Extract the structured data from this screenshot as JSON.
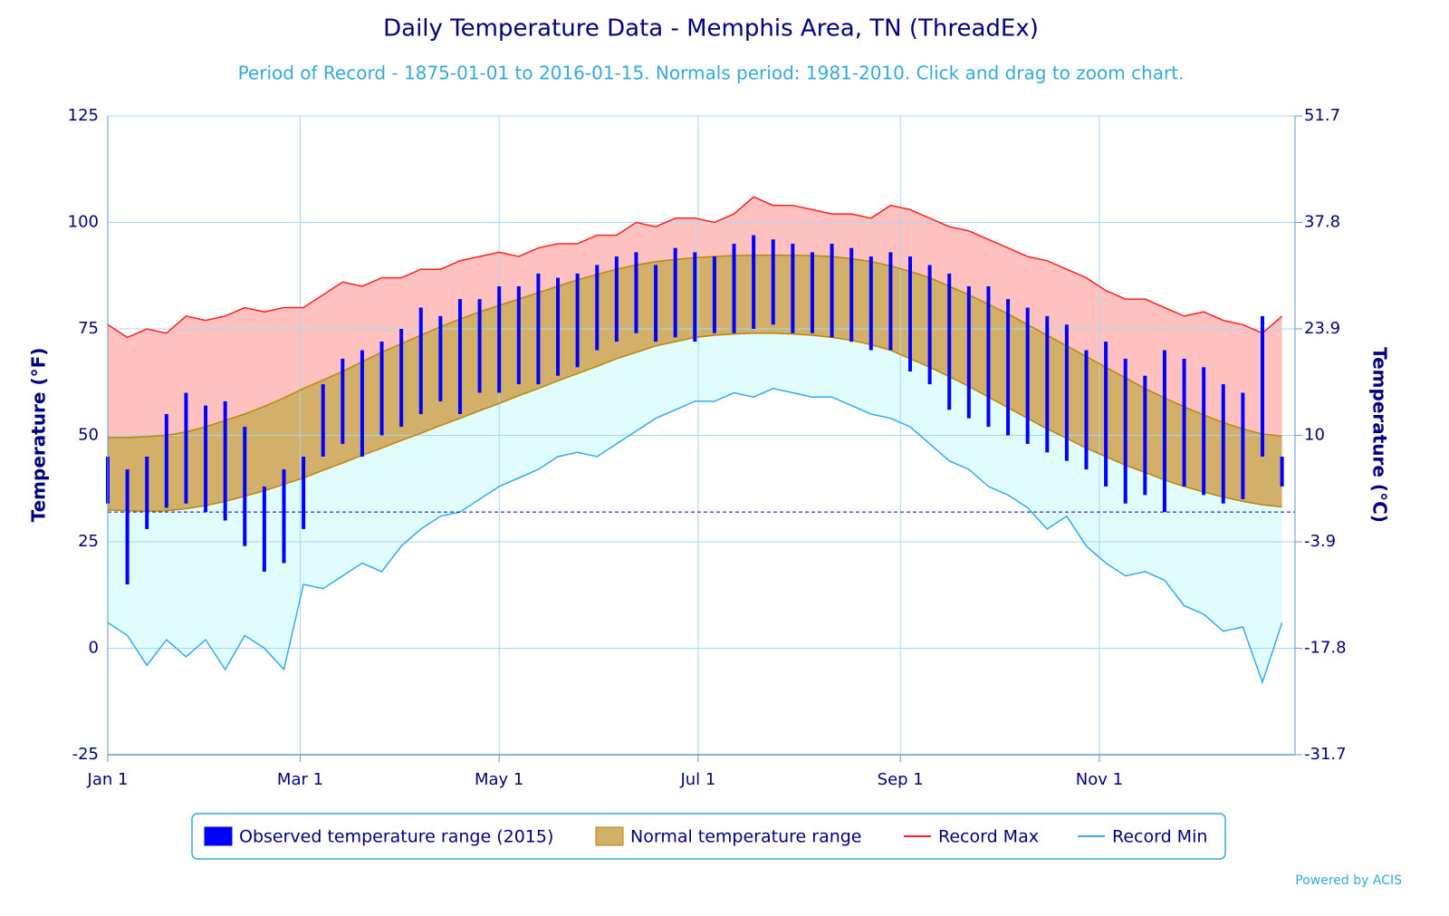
{
  "chart_data": {
    "type": "climate-range",
    "title": "Daily Temperature Data - Memphis Area, TN (ThreadEx)",
    "subtitle": "Period of Record - 1875-01-01 to 2016-01-15. Normals period: 1981-2010. Click and drag to zoom chart.",
    "y_label": "Temperature (°F)",
    "y2_label": "Temperature (°C)",
    "credit": "Powered by ACIS",
    "xlim": [
      0,
      364
    ],
    "xticks": [
      {
        "value": 0,
        "label": "Jan 1"
      },
      {
        "value": 59,
        "label": "Mar 1"
      },
      {
        "value": 120,
        "label": "May 1"
      },
      {
        "value": 181,
        "label": "Jul 1"
      },
      {
        "value": 243,
        "label": "Sep 1"
      },
      {
        "value": 304,
        "label": "Nov 1"
      }
    ],
    "ylim": [
      -25,
      125
    ],
    "yticks": [
      -25,
      0,
      25,
      50,
      75,
      100,
      125
    ],
    "y2lim": [
      -31.7,
      51.7
    ],
    "y2ticks": [
      -31.7,
      -17.8,
      -3.9,
      10,
      23.9,
      37.8,
      51.7
    ],
    "freeze_line": 32,
    "x": [
      0,
      6,
      12,
      18,
      24,
      30,
      36,
      42,
      48,
      54,
      60,
      66,
      72,
      78,
      84,
      90,
      96,
      102,
      108,
      114,
      120,
      126,
      132,
      138,
      144,
      150,
      156,
      162,
      168,
      174,
      180,
      186,
      192,
      198,
      204,
      210,
      216,
      222,
      228,
      234,
      240,
      246,
      252,
      258,
      264,
      270,
      276,
      282,
      288,
      294,
      300,
      306,
      312,
      318,
      324,
      330,
      336,
      342,
      348,
      354,
      360
    ],
    "series": [
      {
        "name": "Observed temperature range (2015)",
        "color": "#0000ff",
        "high": [
          45,
          42,
          45,
          55,
          60,
          57,
          58,
          52,
          38,
          42,
          45,
          62,
          68,
          70,
          72,
          75,
          80,
          78,
          82,
          82,
          85,
          85,
          88,
          87,
          88,
          90,
          92,
          93,
          90,
          94,
          93,
          92,
          95,
          97,
          96,
          95,
          93,
          95,
          94,
          92,
          93,
          92,
          90,
          88,
          85,
          85,
          82,
          80,
          78,
          76,
          70,
          72,
          68,
          64,
          70,
          68,
          66,
          62,
          60,
          78,
          45
        ],
        "low": [
          34,
          15,
          28,
          33,
          34,
          32,
          30,
          24,
          18,
          20,
          28,
          45,
          48,
          45,
          50,
          52,
          55,
          58,
          55,
          60,
          60,
          62,
          62,
          64,
          66,
          70,
          72,
          74,
          72,
          73,
          72,
          74,
          74,
          75,
          76,
          74,
          74,
          73,
          72,
          70,
          70,
          65,
          62,
          56,
          54,
          52,
          50,
          48,
          46,
          44,
          42,
          38,
          34,
          36,
          32,
          38,
          36,
          34,
          35,
          45,
          38
        ]
      },
      {
        "name": "Normal temperature range",
        "color": "#b8860b",
        "fill": "#d2b06a",
        "high": [
          49.5,
          49.5,
          49.7,
          50,
          50.8,
          52,
          53.5,
          55,
          56.8,
          58.8,
          61,
          63,
          65,
          67.3,
          69.5,
          71.5,
          73.5,
          75.5,
          77.3,
          79,
          80.5,
          82,
          83.5,
          85,
          86.5,
          87.8,
          89,
          90,
          90.8,
          91.3,
          91.7,
          92,
          92.2,
          92.3,
          92.3,
          92.3,
          92.2,
          92,
          91.5,
          90.8,
          89.8,
          88.5,
          87,
          85,
          83,
          80.8,
          78.5,
          76,
          73.5,
          71,
          68.5,
          66,
          63.5,
          61,
          58.8,
          56.7,
          54.8,
          53,
          51.5,
          50.3,
          49.8
        ],
        "low": [
          32.5,
          32.3,
          32.2,
          32.3,
          32.8,
          33.5,
          34.5,
          35.7,
          37,
          38.5,
          40,
          41.8,
          43.5,
          45.3,
          47,
          48.8,
          50.5,
          52.3,
          54,
          55.8,
          57.5,
          59.3,
          61,
          62.8,
          64.5,
          66.2,
          68,
          69.5,
          71,
          72,
          73,
          73.5,
          73.8,
          74,
          74,
          73.8,
          73.5,
          73,
          72.3,
          71.3,
          70,
          68,
          66,
          63.8,
          61.5,
          59,
          56.5,
          54,
          51.5,
          49.3,
          47,
          45,
          43,
          41.3,
          39.5,
          38,
          36.7,
          35.5,
          34.5,
          33.7,
          33.2
        ]
      },
      {
        "name": "Record Max",
        "color": "#ff2020",
        "fill": "#ffc0c0",
        "values": [
          76,
          73,
          75,
          74,
          78,
          77,
          78,
          80,
          79,
          80,
          80,
          83,
          86,
          85,
          87,
          87,
          89,
          89,
          91,
          92,
          93,
          92,
          94,
          95,
          95,
          97,
          97,
          100,
          99,
          101,
          101,
          100,
          102,
          106,
          104,
          104,
          103,
          102,
          102,
          101,
          104,
          103,
          101,
          99,
          98,
          96,
          94,
          92,
          91,
          89,
          87,
          84,
          82,
          82,
          80,
          78,
          79,
          77,
          76,
          74,
          78
        ]
      },
      {
        "name": "Record Min",
        "color": "#33aaee",
        "fill": "#e0fcfc",
        "values": [
          6,
          3,
          -4,
          2,
          -2,
          2,
          -5,
          3,
          0,
          -5,
          15,
          14,
          17,
          20,
          18,
          24,
          28,
          31,
          32,
          35,
          38,
          40,
          42,
          45,
          46,
          45,
          48,
          51,
          54,
          56,
          58,
          58,
          60,
          59,
          61,
          60,
          59,
          59,
          57,
          55,
          54,
          52,
          48,
          44,
          42,
          38,
          36,
          33,
          28,
          31,
          24,
          20,
          17,
          18,
          16,
          10,
          8,
          4,
          5,
          -8,
          6
        ]
      }
    ]
  }
}
